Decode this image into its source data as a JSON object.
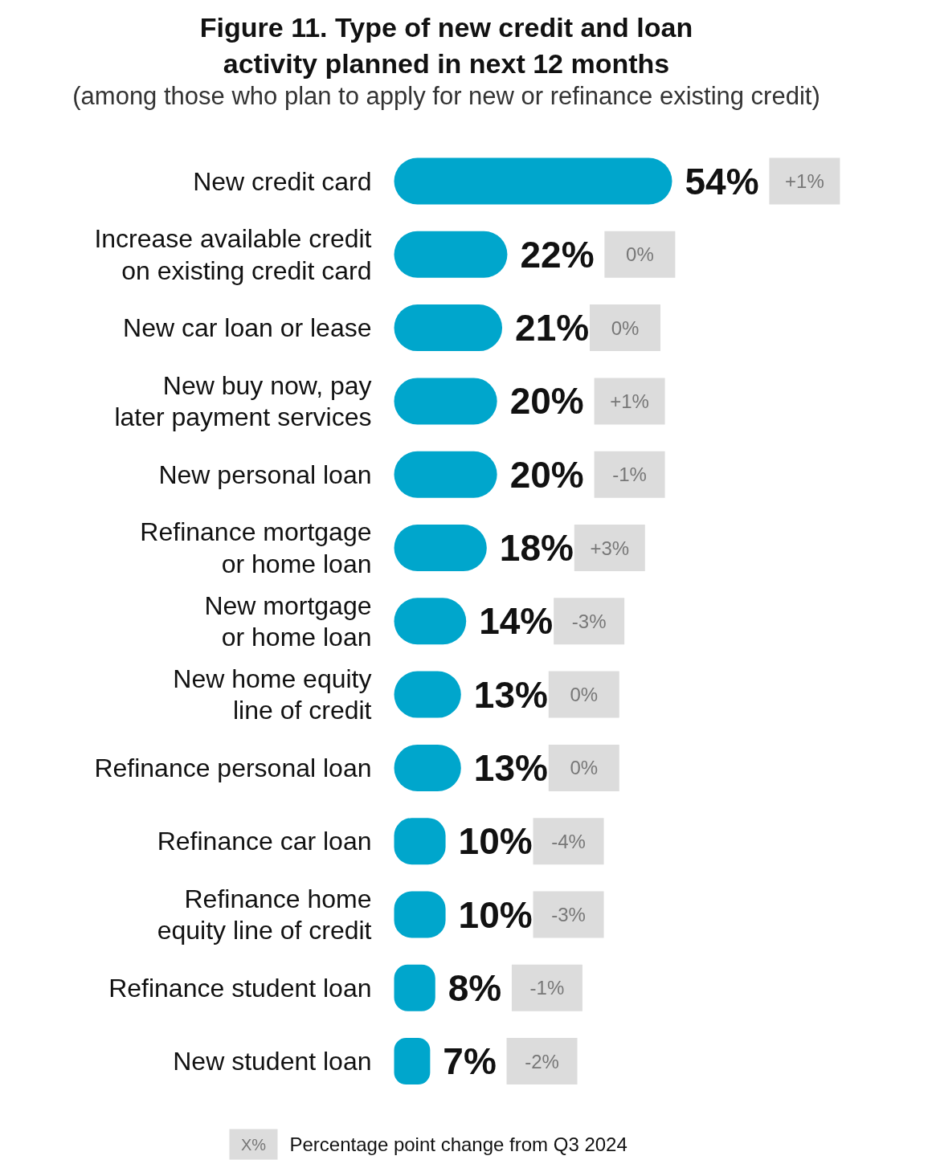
{
  "chart_data": {
    "type": "bar",
    "orientation": "horizontal",
    "title": "Figure 11. Type of new credit and loan activity planned in next 12 months",
    "subtitle": "(among those who plan to apply for new or refinance existing credit)",
    "categories": [
      "New credit card",
      "Increase available credit on existing credit card",
      "New car loan or lease",
      "New buy now, pay later payment services",
      "New personal loan",
      "Refinance mortgage or home loan",
      "New mortgage or home loan",
      "New home equity line of credit",
      "Refinance personal loan",
      "Refinance car loan",
      "Refinance home equity line of credit",
      "Refinance student loan",
      "New student loan"
    ],
    "values": [
      54,
      22,
      21,
      20,
      20,
      18,
      14,
      13,
      13,
      10,
      10,
      8,
      7
    ],
    "value_labels": [
      "54%",
      "22%",
      "21%",
      "20%",
      "20%",
      "18%",
      "14%",
      "13%",
      "13%",
      "10%",
      "10%",
      "8%",
      "7%"
    ],
    "color": "#00a6cc",
    "annotations": [
      "+1%",
      "0%",
      "0%",
      "+1%",
      "-1%",
      "+3%",
      "-3%",
      "0%",
      "0%",
      "-4%",
      "-3%",
      "-1%",
      "-2%",
      "X%",
      "Percentage point change from Q3 2024"
    ]
  }
}
